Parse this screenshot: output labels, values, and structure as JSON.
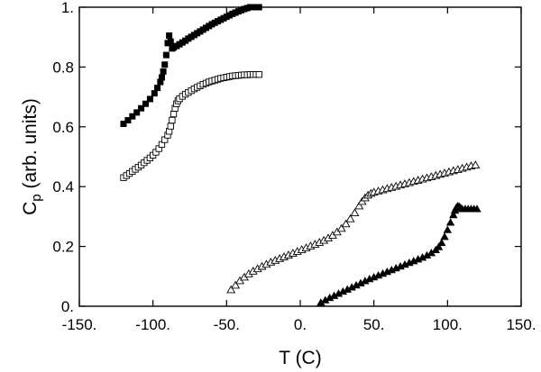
{
  "chart_data": {
    "type": "scatter",
    "xlabel": "T (C)",
    "ylabel_main": "C",
    "ylabel_sub": "p",
    "ylabel_rest": " (arb. units)",
    "xlim": [
      -150,
      150
    ],
    "ylim": [
      0,
      1
    ],
    "x_ticks": [
      -150,
      -100,
      -50,
      0,
      50,
      100,
      150
    ],
    "x_tick_labels": [
      "-150.",
      "-100.",
      "-50.",
      "0.",
      "50.",
      "100.",
      "150."
    ],
    "y_ticks": [
      0,
      0.2,
      0.4,
      0.6,
      0.8,
      1.0
    ],
    "y_tick_labels": [
      "0.",
      "0.2",
      "0.4",
      "0.6",
      "0.8",
      "1."
    ],
    "grid": false,
    "legend": "none",
    "series": [
      {
        "marker": "filled-square",
        "x": [
          -120,
          -117,
          -114,
          -111,
          -108,
          -105,
          -102,
          -99,
          -97,
          -95,
          -94,
          -93,
          -92,
          -91,
          -90,
          -89,
          -88,
          -87,
          -86,
          -84,
          -82,
          -80,
          -78,
          -76,
          -74,
          -72,
          -70,
          -68,
          -66,
          -64,
          -62,
          -60,
          -58,
          -56,
          -54,
          -52,
          -50,
          -48,
          -46,
          -44,
          -42,
          -40,
          -38,
          -36,
          -34,
          -32,
          -30,
          -28
        ],
        "y": [
          0.61,
          0.622,
          0.635,
          0.648,
          0.662,
          0.677,
          0.693,
          0.712,
          0.73,
          0.75,
          0.765,
          0.785,
          0.808,
          0.84,
          0.88,
          0.905,
          0.885,
          0.862,
          0.865,
          0.87,
          0.876,
          0.882,
          0.888,
          0.895,
          0.901,
          0.907,
          0.913,
          0.919,
          0.925,
          0.931,
          0.937,
          0.943,
          0.948,
          0.953,
          0.958,
          0.963,
          0.968,
          0.973,
          0.978,
          0.982,
          0.986,
          0.99,
          0.994,
          0.997,
          1.0,
          1.0,
          1.0,
          1.0
        ]
      },
      {
        "marker": "open-square",
        "x": [
          -120,
          -118,
          -116,
          -114,
          -112,
          -110,
          -108,
          -106,
          -104,
          -102,
          -100,
          -98,
          -96,
          -94,
          -92,
          -90,
          -89,
          -88,
          -87,
          -86,
          -85,
          -84,
          -83,
          -82,
          -80,
          -78,
          -76,
          -74,
          -72,
          -70,
          -68,
          -66,
          -64,
          -62,
          -60,
          -58,
          -56,
          -54,
          -52,
          -50,
          -48,
          -46,
          -44,
          -42,
          -40,
          -38,
          -36,
          -34,
          -32,
          -30,
          -28
        ],
        "y": [
          0.43,
          0.437,
          0.444,
          0.451,
          0.458,
          0.465,
          0.472,
          0.48,
          0.488,
          0.496,
          0.505,
          0.515,
          0.527,
          0.541,
          0.557,
          0.572,
          0.585,
          0.602,
          0.622,
          0.643,
          0.662,
          0.677,
          0.687,
          0.694,
          0.702,
          0.709,
          0.715,
          0.721,
          0.727,
          0.732,
          0.737,
          0.742,
          0.746,
          0.75,
          0.753,
          0.756,
          0.759,
          0.762,
          0.764,
          0.766,
          0.768,
          0.77,
          0.771,
          0.772,
          0.773,
          0.774,
          0.774,
          0.775,
          0.775,
          0.775,
          0.775
        ]
      },
      {
        "marker": "open-triangle",
        "x": [
          -47,
          -44,
          -41,
          -38,
          -35,
          -32,
          -29,
          -26,
          -23,
          -20,
          -17,
          -14,
          -11,
          -8,
          -5,
          -2,
          1,
          4,
          7,
          10,
          13,
          16,
          19,
          22,
          25,
          28,
          31,
          34,
          37,
          40,
          42,
          44,
          46,
          48,
          50,
          53,
          56,
          59,
          62,
          65,
          68,
          71,
          74,
          77,
          80,
          83,
          86,
          89,
          92,
          95,
          98,
          101,
          104,
          107,
          110,
          113,
          116,
          119
        ],
        "y": [
          0.055,
          0.07,
          0.085,
          0.097,
          0.108,
          0.117,
          0.125,
          0.133,
          0.14,
          0.147,
          0.153,
          0.159,
          0.165,
          0.171,
          0.177,
          0.183,
          0.189,
          0.195,
          0.201,
          0.207,
          0.213,
          0.22,
          0.228,
          0.237,
          0.248,
          0.26,
          0.275,
          0.292,
          0.312,
          0.335,
          0.35,
          0.362,
          0.371,
          0.377,
          0.381,
          0.385,
          0.389,
          0.393,
          0.397,
          0.401,
          0.405,
          0.409,
          0.413,
          0.417,
          0.421,
          0.425,
          0.429,
          0.433,
          0.437,
          0.441,
          0.445,
          0.449,
          0.453,
          0.457,
          0.461,
          0.465,
          0.469,
          0.472
        ]
      },
      {
        "marker": "filled-triangle",
        "x": [
          14,
          17,
          20,
          23,
          26,
          29,
          32,
          35,
          38,
          41,
          44,
          47,
          50,
          53,
          56,
          59,
          62,
          65,
          68,
          71,
          74,
          77,
          80,
          83,
          86,
          89,
          92,
          94,
          96,
          98,
          100,
          102,
          104,
          105,
          106,
          107,
          108,
          109,
          110,
          112,
          114,
          116,
          118,
          120
        ],
        "y": [
          0.012,
          0.02,
          0.028,
          0.035,
          0.042,
          0.049,
          0.056,
          0.063,
          0.07,
          0.077,
          0.084,
          0.091,
          0.097,
          0.103,
          0.109,
          0.115,
          0.121,
          0.127,
          0.133,
          0.139,
          0.145,
          0.151,
          0.157,
          0.163,
          0.17,
          0.178,
          0.188,
          0.198,
          0.212,
          0.232,
          0.255,
          0.28,
          0.305,
          0.32,
          0.33,
          0.335,
          0.333,
          0.328,
          0.325,
          0.325,
          0.325,
          0.325,
          0.325,
          0.325
        ]
      }
    ]
  }
}
